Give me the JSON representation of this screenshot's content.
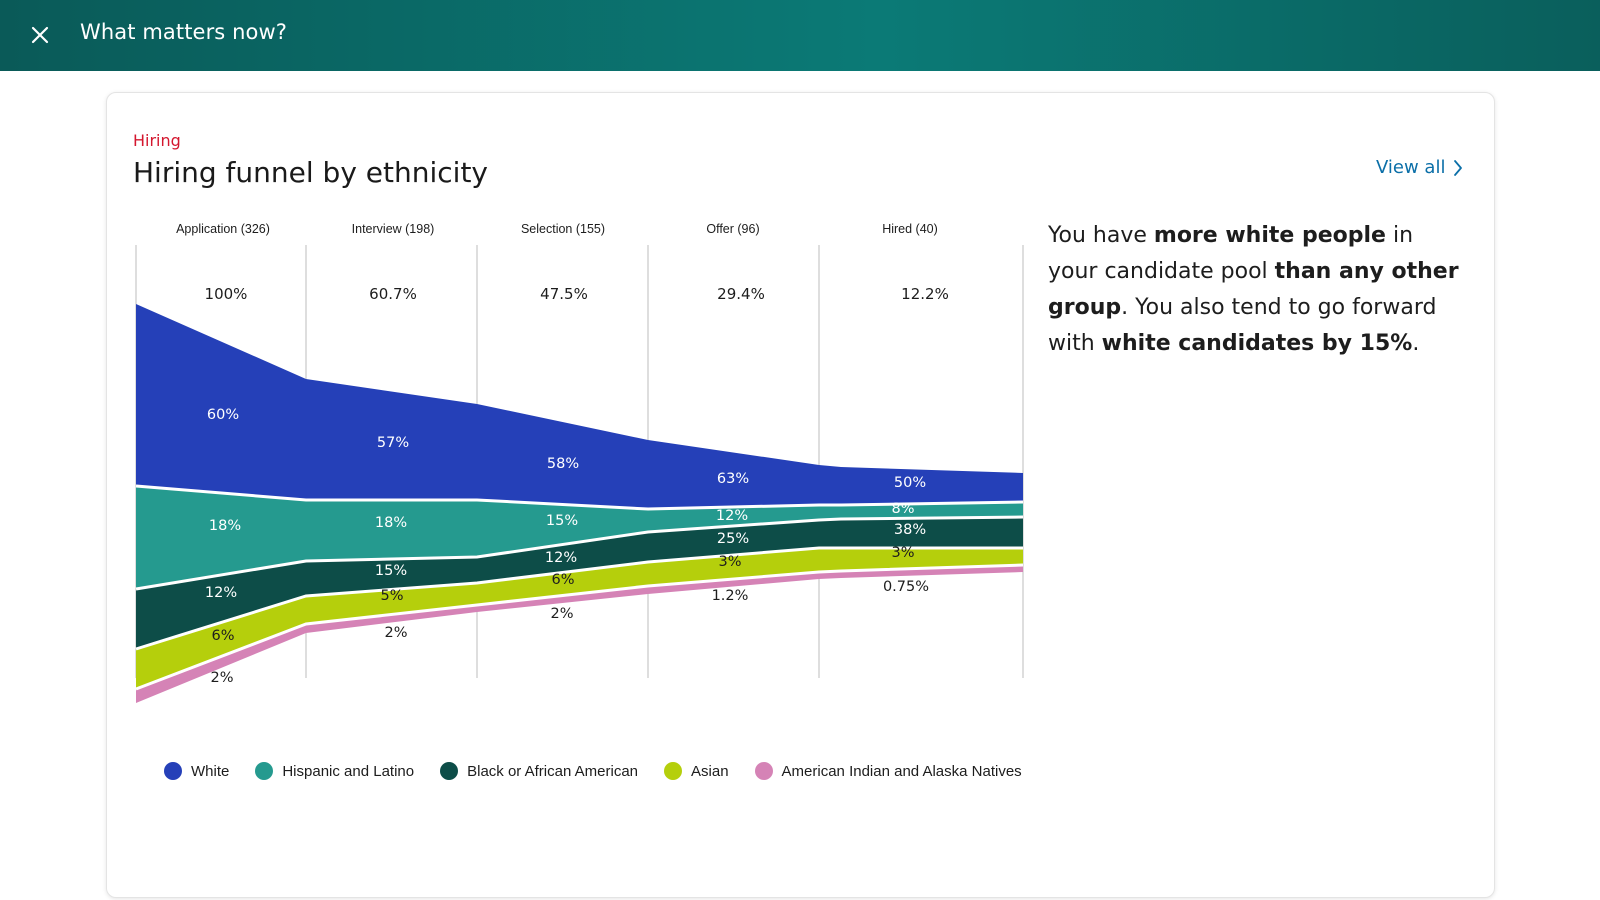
{
  "header": {
    "title": "What matters now?",
    "close_icon": "close-icon"
  },
  "card": {
    "eyebrow": "Hiring",
    "title": "Hiring funnel by ethnicity",
    "view_all_label": "View all",
    "view_all_icon": "chevron-right-icon"
  },
  "insight": {
    "parts": [
      {
        "text": "You have ",
        "bold": false
      },
      {
        "text": "more white people",
        "bold": true
      },
      {
        "text": " in your candidate pool ",
        "bold": false
      },
      {
        "text": "than any other group",
        "bold": true
      },
      {
        "text": ". You also tend to go forward with ",
        "bold": false
      },
      {
        "text": "white candidates by 15%",
        "bold": true
      },
      {
        "text": ".",
        "bold": false
      }
    ]
  },
  "chart_data": {
    "type": "area",
    "stages": [
      "Application (326)",
      "Interview (198)",
      "Selection (155)",
      "Offer (96)",
      "Hired (40)"
    ],
    "stage_percent": [
      "100%",
      "60.7%",
      "47.5%",
      "29.4%",
      "12.2%"
    ],
    "stage_totals": [
      326,
      198,
      155,
      96,
      40
    ],
    "series": [
      {
        "name": "White",
        "color": "#2540b8",
        "labels": [
          "60%",
          "57%",
          "58%",
          "63%",
          "50%"
        ]
      },
      {
        "name": "Hispanic and Latino",
        "color": "#259a8f",
        "labels": [
          "18%",
          "18%",
          "15%",
          "12%",
          "8%"
        ]
      },
      {
        "name": "Black or African American",
        "color": "#0d4d48",
        "labels": [
          "12%",
          "15%",
          "12%",
          "25%",
          "38%"
        ]
      },
      {
        "name": "Asian",
        "color": "#b5cf0c",
        "labels": [
          "6%",
          "5%",
          "6%",
          "3%",
          "3%"
        ]
      },
      {
        "name": "American Indian and Alaska Natives",
        "color": "#d583b6",
        "labels": [
          "2%",
          "2%",
          "2%",
          "1.2%",
          "0.75%"
        ]
      }
    ],
    "legend_position": "bottom"
  }
}
